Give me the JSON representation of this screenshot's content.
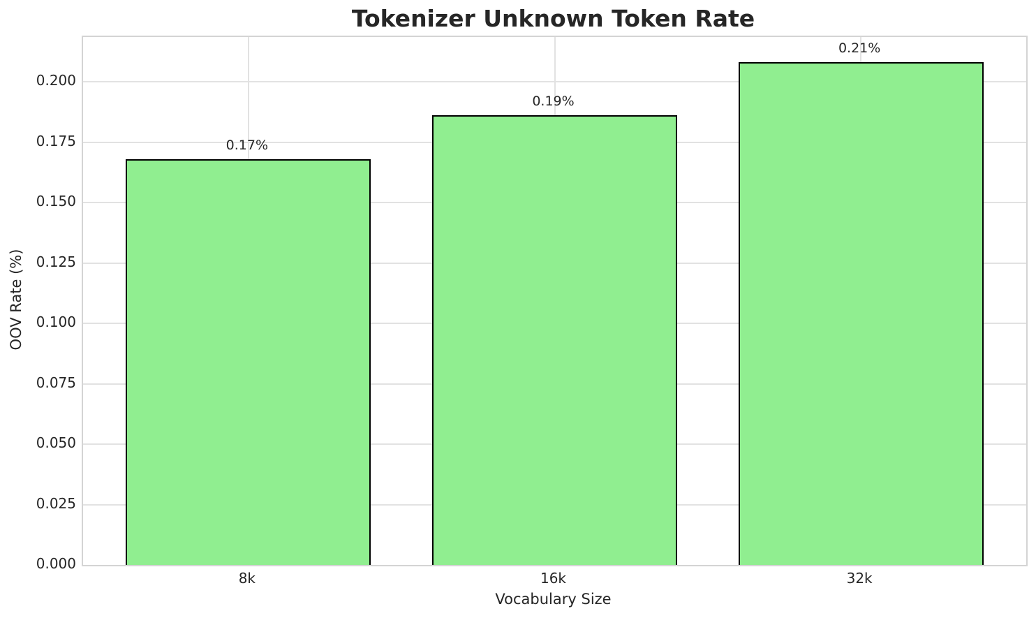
{
  "chart_data": {
    "type": "bar",
    "title": "Tokenizer Unknown Token Rate",
    "xlabel": "Vocabulary Size",
    "ylabel": "OOV Rate (%)",
    "categories": [
      "8k",
      "16k",
      "32k"
    ],
    "values": [
      0.168,
      0.186,
      0.208
    ],
    "bar_labels": [
      "0.17%",
      "0.19%",
      "0.21%"
    ],
    "ylim": [
      0,
      0.2185
    ],
    "yticks": [
      0.0,
      0.025,
      0.05,
      0.075,
      0.1,
      0.125,
      0.15,
      0.175,
      0.2
    ],
    "ytick_labels": [
      "0.000",
      "0.025",
      "0.050",
      "0.075",
      "0.100",
      "0.125",
      "0.150",
      "0.175",
      "0.200"
    ],
    "grid": true,
    "legend": "none",
    "bar_width_fraction": 0.8,
    "colors": {
      "bar_fill": "#90EE90",
      "bar_edge": "#000000",
      "grid": "#e2e2e2",
      "spine": "#d4d4d4",
      "text": "#262626",
      "background": "#ffffff"
    }
  }
}
